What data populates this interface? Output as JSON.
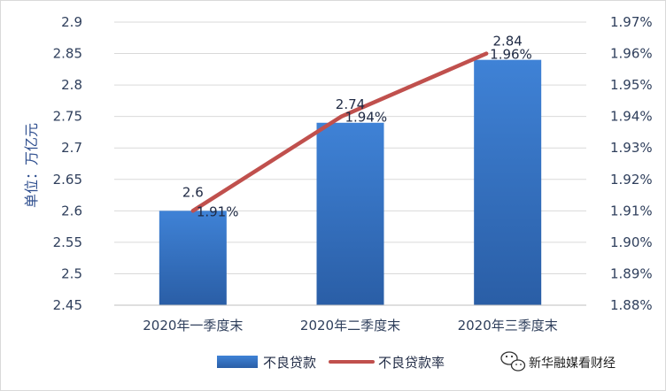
{
  "chart_data": {
    "type": "bar+line",
    "categories": [
      "2020年一季度末",
      "2020年二季度末",
      "2020年三季度末"
    ],
    "bar_series": {
      "name": "不良贷款",
      "values": [
        2.6,
        2.74,
        2.84
      ],
      "data_labels": [
        "2.6",
        "2.74",
        "2.84"
      ],
      "color": "#3a78c9"
    },
    "line_series": {
      "name": "不良贷款率",
      "values": [
        1.91,
        1.94,
        1.96
      ],
      "data_labels": [
        "1.91%",
        "1.94%",
        "1.96%"
      ],
      "color": "#c0504d"
    },
    "ylabel_left": "单位：万亿元",
    "y_left": {
      "min": 2.45,
      "max": 2.9,
      "step": 0.05,
      "ticks": [
        "2.45",
        "2.5",
        "2.55",
        "2.6",
        "2.65",
        "2.7",
        "2.75",
        "2.8",
        "2.85",
        "2.9"
      ]
    },
    "y_right": {
      "min": 1.88,
      "max": 1.97,
      "step": 0.01,
      "ticks": [
        "1.88%",
        "1.89%",
        "1.90%",
        "1.91%",
        "1.92%",
        "1.93%",
        "1.94%",
        "1.95%",
        "1.96%",
        "1.97%"
      ]
    },
    "grid": true,
    "legend": "bottom"
  },
  "watermark": {
    "text": "新华融媒看财经",
    "icon": "wechat-icon"
  }
}
